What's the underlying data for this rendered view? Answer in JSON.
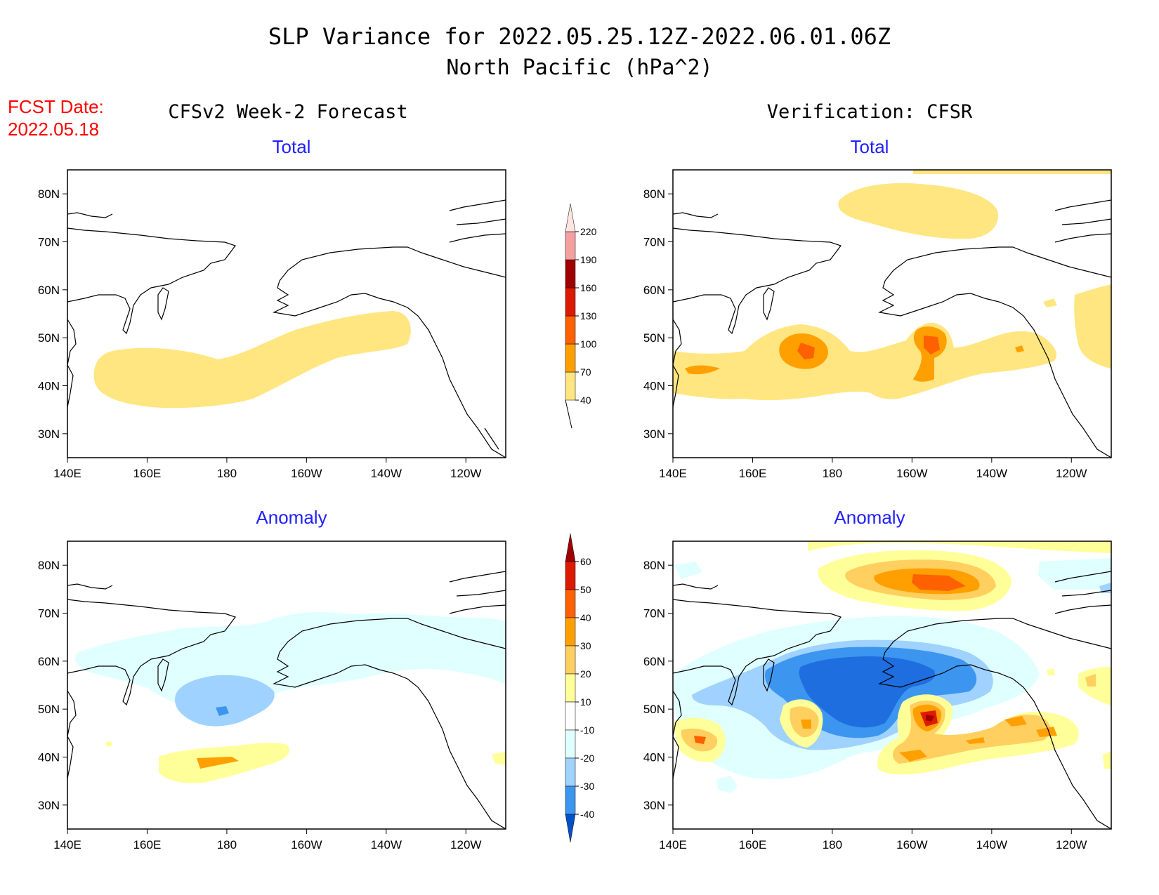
{
  "title_line1": "SLP Variance for 2022.05.25.12Z-2022.06.01.06Z",
  "title_line2": "North Pacific (hPa^2)",
  "fcst_label": "FCST Date:",
  "fcst_date": "2022.05.18",
  "left_heading": "CFSv2 Week-2 Forecast",
  "right_heading": "Verification: CFSR",
  "panels": {
    "fcst_total": {
      "title": "Total"
    },
    "verif_total": {
      "title": "Total"
    },
    "fcst_anom": {
      "title": "Anomaly"
    },
    "verif_anom": {
      "title": "Anomaly"
    }
  },
  "axes": {
    "x_ticks": [
      "140E",
      "160E",
      "180",
      "160W",
      "140W",
      "120W"
    ],
    "y_ticks": [
      "80N",
      "70N",
      "60N",
      "50N",
      "40N",
      "30N"
    ]
  },
  "total_colorbar": {
    "levels": [
      "40",
      "70",
      "100",
      "130",
      "160",
      "190",
      "220"
    ],
    "colors": [
      "#ffe680",
      "#ffa000",
      "#ff6000",
      "#dd1a00",
      "#a00000",
      "#f4a0a0",
      "#ffe4e0"
    ]
  },
  "anomaly_colorbar": {
    "levels": [
      "60",
      "50",
      "40",
      "30",
      "20",
      "10",
      "-10",
      "-20",
      "-30",
      "-40"
    ],
    "colors": {
      "pos": [
        "#ffff9a",
        "#ffd060",
        "#ffa000",
        "#ff6000",
        "#dd1a00",
        "#a00000"
      ],
      "neutral": "#ffffff",
      "neg": [
        "#e0ffff",
        "#a0d2ff",
        "#3c96f0",
        "#1e6ee0",
        "#0050c8"
      ]
    }
  },
  "colors": {
    "title_text": "#000000",
    "fcst_date_text": "#ff0000",
    "panel_title_text": "#2020ff"
  }
}
